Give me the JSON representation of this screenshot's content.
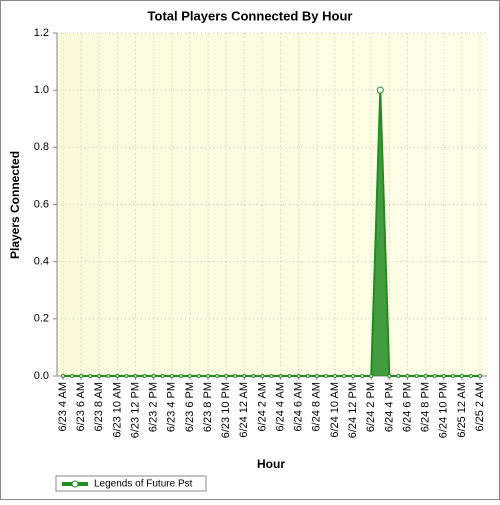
{
  "chart_data": {
    "type": "area",
    "title": "Total Players Connected By Hour",
    "x_label": "Hour",
    "y_label": "Players Connected",
    "categories": [
      "6/23 4 AM",
      null,
      "6/23 6 AM",
      null,
      "6/23 8 AM",
      null,
      "6/23 10 AM",
      null,
      "6/23 12 PM",
      null,
      "6/23 2 PM",
      null,
      "6/23 4 PM",
      null,
      "6/23 6 PM",
      null,
      "6/23 8 PM",
      null,
      "6/23 10 PM",
      null,
      "6/24 12 AM",
      null,
      "6/24 2 AM",
      null,
      "6/24 4 AM",
      null,
      "6/24 6 AM",
      null,
      "6/24 8 AM",
      null,
      "6/24 10 AM",
      null,
      "6/24 12 PM",
      null,
      "6/24 2 PM",
      null,
      "6/24 4 PM",
      null,
      "6/24 6 PM",
      null,
      "6/24 8 PM",
      null,
      "6/24 10 PM",
      null,
      "6/25 12 AM",
      null,
      "6/25 2 AM"
    ],
    "series": [
      {
        "name": "Legends of Future Pst",
        "color": "#228b22",
        "values": [
          0,
          0,
          0,
          0,
          0,
          0,
          0,
          0,
          0,
          0,
          0,
          0,
          0,
          0,
          0,
          0,
          0,
          0,
          0,
          0,
          0,
          0,
          0,
          0,
          0,
          0,
          0,
          0,
          0,
          0,
          0,
          0,
          0,
          0,
          0,
          1,
          0,
          0,
          0,
          0,
          0,
          0,
          0,
          0,
          0,
          0,
          0
        ]
      }
    ],
    "ylim": [
      0,
      1.2
    ],
    "yticks": [
      {
        "value": 0,
        "label": "0.0"
      },
      0.2,
      0.4,
      0.6,
      0.8,
      {
        "value": 1,
        "label": "1.0"
      },
      1.2
    ],
    "grid": true,
    "legend": "bottom-left"
  }
}
